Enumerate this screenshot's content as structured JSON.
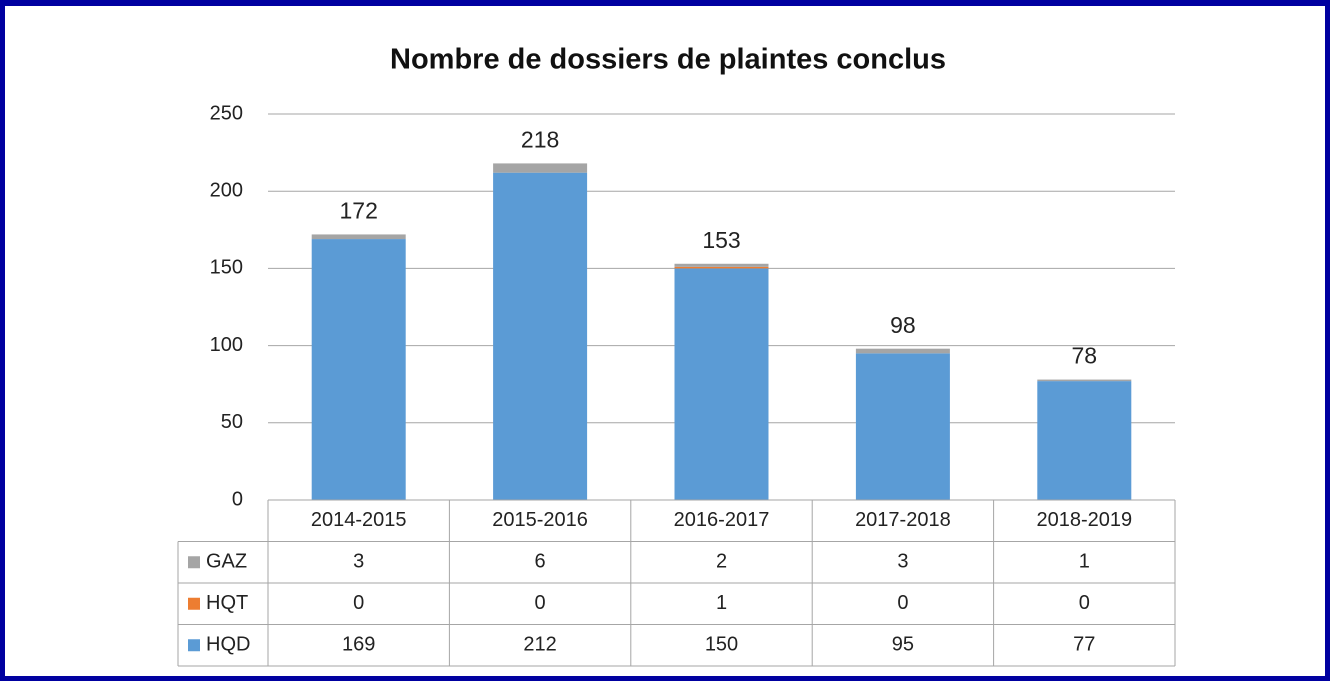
{
  "chart_data": {
    "type": "bar",
    "stacked": true,
    "title": "Nombre de dossiers de plaintes conclus",
    "categories": [
      "2014-2015",
      "2015-2016",
      "2016-2017",
      "2017-2018",
      "2018-2019"
    ],
    "series": [
      {
        "name": "HQD",
        "color": "#5b9bd5",
        "values": [
          169,
          212,
          150,
          95,
          77
        ]
      },
      {
        "name": "HQT",
        "color": "#ed7d31",
        "values": [
          0,
          0,
          1,
          0,
          0
        ]
      },
      {
        "name": "GAZ",
        "color": "#a5a5a5",
        "values": [
          3,
          6,
          2,
          3,
          1
        ]
      }
    ],
    "totals": [
      172,
      218,
      153,
      98,
      78
    ],
    "ylim": [
      0,
      250
    ],
    "yticks": [
      0,
      50,
      100,
      150,
      200,
      250
    ],
    "grid": true,
    "data_table": true
  }
}
